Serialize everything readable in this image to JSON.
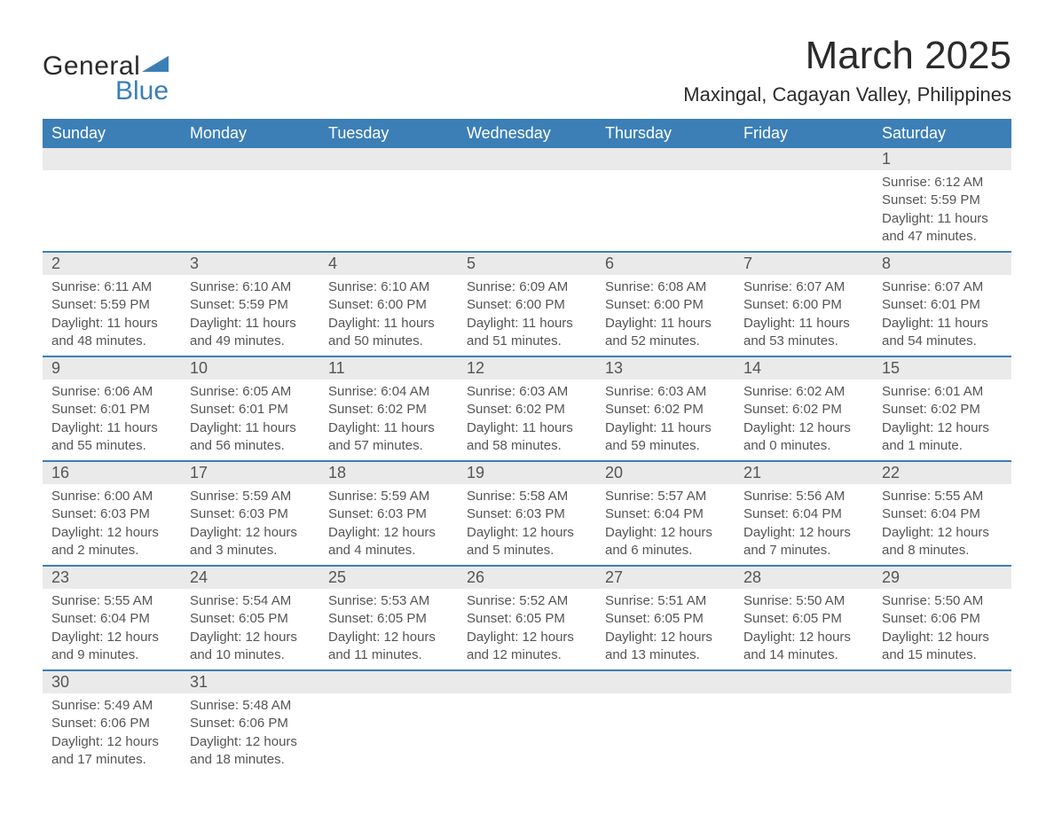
{
  "logo": {
    "text1": "General",
    "text2": "Blue",
    "shape_color": "#3b7fb6"
  },
  "title": "March 2025",
  "location": "Maxingal, Cagayan Valley, Philippines",
  "colors": {
    "header_bg": "#3b7fb6",
    "header_text": "#ffffff",
    "daynum_bg": "#eaeaea",
    "border": "#3b7fb6",
    "text": "#555555",
    "page_bg": "#ffffff"
  },
  "typography": {
    "title_fontsize": 44,
    "location_fontsize": 22,
    "header_fontsize": 18,
    "daynum_fontsize": 18,
    "detail_fontsize": 15,
    "font_family": "Arial"
  },
  "layout": {
    "columns": 7,
    "rows": 6,
    "aspect_ratio": "1188x918"
  },
  "day_headers": [
    "Sunday",
    "Monday",
    "Tuesday",
    "Wednesday",
    "Thursday",
    "Friday",
    "Saturday"
  ],
  "weeks": [
    [
      null,
      null,
      null,
      null,
      null,
      null,
      {
        "day": "1",
        "sunrise": "Sunrise: 6:12 AM",
        "sunset": "Sunset: 5:59 PM",
        "daylight": "Daylight: 11 hours and 47 minutes."
      }
    ],
    [
      {
        "day": "2",
        "sunrise": "Sunrise: 6:11 AM",
        "sunset": "Sunset: 5:59 PM",
        "daylight": "Daylight: 11 hours and 48 minutes."
      },
      {
        "day": "3",
        "sunrise": "Sunrise: 6:10 AM",
        "sunset": "Sunset: 5:59 PM",
        "daylight": "Daylight: 11 hours and 49 minutes."
      },
      {
        "day": "4",
        "sunrise": "Sunrise: 6:10 AM",
        "sunset": "Sunset: 6:00 PM",
        "daylight": "Daylight: 11 hours and 50 minutes."
      },
      {
        "day": "5",
        "sunrise": "Sunrise: 6:09 AM",
        "sunset": "Sunset: 6:00 PM",
        "daylight": "Daylight: 11 hours and 51 minutes."
      },
      {
        "day": "6",
        "sunrise": "Sunrise: 6:08 AM",
        "sunset": "Sunset: 6:00 PM",
        "daylight": "Daylight: 11 hours and 52 minutes."
      },
      {
        "day": "7",
        "sunrise": "Sunrise: 6:07 AM",
        "sunset": "Sunset: 6:00 PM",
        "daylight": "Daylight: 11 hours and 53 minutes."
      },
      {
        "day": "8",
        "sunrise": "Sunrise: 6:07 AM",
        "sunset": "Sunset: 6:01 PM",
        "daylight": "Daylight: 11 hours and 54 minutes."
      }
    ],
    [
      {
        "day": "9",
        "sunrise": "Sunrise: 6:06 AM",
        "sunset": "Sunset: 6:01 PM",
        "daylight": "Daylight: 11 hours and 55 minutes."
      },
      {
        "day": "10",
        "sunrise": "Sunrise: 6:05 AM",
        "sunset": "Sunset: 6:01 PM",
        "daylight": "Daylight: 11 hours and 56 minutes."
      },
      {
        "day": "11",
        "sunrise": "Sunrise: 6:04 AM",
        "sunset": "Sunset: 6:02 PM",
        "daylight": "Daylight: 11 hours and 57 minutes."
      },
      {
        "day": "12",
        "sunrise": "Sunrise: 6:03 AM",
        "sunset": "Sunset: 6:02 PM",
        "daylight": "Daylight: 11 hours and 58 minutes."
      },
      {
        "day": "13",
        "sunrise": "Sunrise: 6:03 AM",
        "sunset": "Sunset: 6:02 PM",
        "daylight": "Daylight: 11 hours and 59 minutes."
      },
      {
        "day": "14",
        "sunrise": "Sunrise: 6:02 AM",
        "sunset": "Sunset: 6:02 PM",
        "daylight": "Daylight: 12 hours and 0 minutes."
      },
      {
        "day": "15",
        "sunrise": "Sunrise: 6:01 AM",
        "sunset": "Sunset: 6:02 PM",
        "daylight": "Daylight: 12 hours and 1 minute."
      }
    ],
    [
      {
        "day": "16",
        "sunrise": "Sunrise: 6:00 AM",
        "sunset": "Sunset: 6:03 PM",
        "daylight": "Daylight: 12 hours and 2 minutes."
      },
      {
        "day": "17",
        "sunrise": "Sunrise: 5:59 AM",
        "sunset": "Sunset: 6:03 PM",
        "daylight": "Daylight: 12 hours and 3 minutes."
      },
      {
        "day": "18",
        "sunrise": "Sunrise: 5:59 AM",
        "sunset": "Sunset: 6:03 PM",
        "daylight": "Daylight: 12 hours and 4 minutes."
      },
      {
        "day": "19",
        "sunrise": "Sunrise: 5:58 AM",
        "sunset": "Sunset: 6:03 PM",
        "daylight": "Daylight: 12 hours and 5 minutes."
      },
      {
        "day": "20",
        "sunrise": "Sunrise: 5:57 AM",
        "sunset": "Sunset: 6:04 PM",
        "daylight": "Daylight: 12 hours and 6 minutes."
      },
      {
        "day": "21",
        "sunrise": "Sunrise: 5:56 AM",
        "sunset": "Sunset: 6:04 PM",
        "daylight": "Daylight: 12 hours and 7 minutes."
      },
      {
        "day": "22",
        "sunrise": "Sunrise: 5:55 AM",
        "sunset": "Sunset: 6:04 PM",
        "daylight": "Daylight: 12 hours and 8 minutes."
      }
    ],
    [
      {
        "day": "23",
        "sunrise": "Sunrise: 5:55 AM",
        "sunset": "Sunset: 6:04 PM",
        "daylight": "Daylight: 12 hours and 9 minutes."
      },
      {
        "day": "24",
        "sunrise": "Sunrise: 5:54 AM",
        "sunset": "Sunset: 6:05 PM",
        "daylight": "Daylight: 12 hours and 10 minutes."
      },
      {
        "day": "25",
        "sunrise": "Sunrise: 5:53 AM",
        "sunset": "Sunset: 6:05 PM",
        "daylight": "Daylight: 12 hours and 11 minutes."
      },
      {
        "day": "26",
        "sunrise": "Sunrise: 5:52 AM",
        "sunset": "Sunset: 6:05 PM",
        "daylight": "Daylight: 12 hours and 12 minutes."
      },
      {
        "day": "27",
        "sunrise": "Sunrise: 5:51 AM",
        "sunset": "Sunset: 6:05 PM",
        "daylight": "Daylight: 12 hours and 13 minutes."
      },
      {
        "day": "28",
        "sunrise": "Sunrise: 5:50 AM",
        "sunset": "Sunset: 6:05 PM",
        "daylight": "Daylight: 12 hours and 14 minutes."
      },
      {
        "day": "29",
        "sunrise": "Sunrise: 5:50 AM",
        "sunset": "Sunset: 6:06 PM",
        "daylight": "Daylight: 12 hours and 15 minutes."
      }
    ],
    [
      {
        "day": "30",
        "sunrise": "Sunrise: 5:49 AM",
        "sunset": "Sunset: 6:06 PM",
        "daylight": "Daylight: 12 hours and 17 minutes."
      },
      {
        "day": "31",
        "sunrise": "Sunrise: 5:48 AM",
        "sunset": "Sunset: 6:06 PM",
        "daylight": "Daylight: 12 hours and 18 minutes."
      },
      null,
      null,
      null,
      null,
      null
    ]
  ]
}
